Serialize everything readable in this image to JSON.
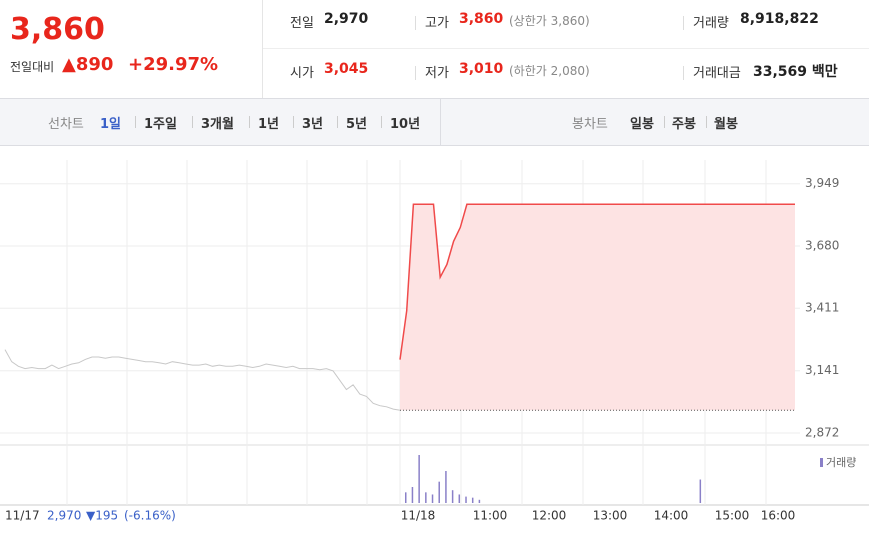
{
  "quote": {
    "price": "3,860",
    "change_label": "전일대비",
    "change": "890",
    "change_pct": "+29.97%"
  },
  "stats": [
    [
      {
        "label": "전일",
        "value": "2,970"
      },
      {
        "label": "고가",
        "value": "3,860",
        "note": "(상한가 3,860)"
      },
      {
        "label": "거래량",
        "value": "8,918,822"
      }
    ],
    [
      {
        "label": "시가",
        "value": "3,045"
      },
      {
        "label": "저가",
        "value": "3,010",
        "note": "(하한가 2,080)"
      },
      {
        "label": "거래대금",
        "value": "33,569 백만"
      }
    ]
  ],
  "tabs": {
    "line_label": "선차트",
    "line": [
      "1일",
      "1주일",
      "3개월",
      "1년",
      "3년",
      "5년",
      "10년"
    ],
    "candle_label": "봉차트",
    "candle": [
      "일봉",
      "주봉",
      "월봉"
    ]
  },
  "prev_day": {
    "date": "11/17",
    "close": "2,970",
    "change": "▼195",
    "change_pct": "(-6.16%)"
  },
  "chart_data": {
    "type": "line",
    "ylim": [
      2820,
      4060
    ],
    "yticks": [
      {
        "value": 3949,
        "label": "3,949"
      },
      {
        "value": 3680,
        "label": "3,680"
      },
      {
        "value": 3411,
        "label": "3,411"
      },
      {
        "value": 3141,
        "label": "3,141"
      },
      {
        "value": 2872,
        "label": "2,872"
      }
    ],
    "base": 2970,
    "xlabels": [
      "11/18",
      "11:00",
      "12:00",
      "13:00",
      "14:00",
      "15:00",
      "16:00"
    ],
    "series": [
      {
        "name": "11/17",
        "color": "#c8c8c8",
        "values": [
          3232,
          3180,
          3160,
          3150,
          3155,
          3150,
          3150,
          3165,
          3150,
          3160,
          3170,
          3175,
          3190,
          3200,
          3200,
          3195,
          3200,
          3200,
          3195,
          3190,
          3185,
          3180,
          3180,
          3175,
          3170,
          3180,
          3175,
          3170,
          3165,
          3165,
          3170,
          3160,
          3165,
          3160,
          3160,
          3165,
          3160,
          3155,
          3160,
          3170,
          3165,
          3160,
          3155,
          3160,
          3150,
          3150,
          3150,
          3145,
          3150,
          3140,
          3100,
          3060,
          3080,
          3040,
          3030,
          3000,
          2990,
          2985,
          2975,
          2970
        ]
      },
      {
        "name": "11/18",
        "color": "#f04a4a",
        "values": [
          3189,
          3400,
          3860,
          3860,
          3860,
          3860,
          3545,
          3600,
          3700,
          3760,
          3860,
          3860,
          3860,
          3860,
          3860,
          3860,
          3860,
          3860,
          3860,
          3860,
          3860,
          3860,
          3860,
          3860,
          3860,
          3860,
          3860,
          3860,
          3860,
          3860,
          3860,
          3860,
          3860,
          3860,
          3860,
          3860,
          3860,
          3860,
          3860,
          3860,
          3860,
          3860,
          3860,
          3860,
          3860,
          3860,
          3860,
          3860,
          3860,
          3860,
          3860,
          3860,
          3860,
          3860,
          3860,
          3860,
          3860,
          3860,
          3860,
          3860
        ]
      }
    ],
    "volume": {
      "name": "거래량",
      "color": "#8a80c8",
      "values": [
        10,
        15,
        45,
        10,
        8,
        20,
        30,
        12,
        8,
        6,
        5,
        3,
        0,
        0,
        0,
        0,
        0,
        0,
        0,
        0,
        0,
        0,
        0,
        0,
        0,
        0,
        0,
        0,
        0,
        0,
        0,
        0,
        0,
        0,
        0,
        0,
        0,
        0,
        0,
        0,
        0,
        0,
        0,
        0,
        22,
        0,
        0,
        0,
        0,
        0,
        0,
        0,
        0,
        0,
        0,
        0,
        0,
        0,
        0,
        0
      ]
    }
  }
}
